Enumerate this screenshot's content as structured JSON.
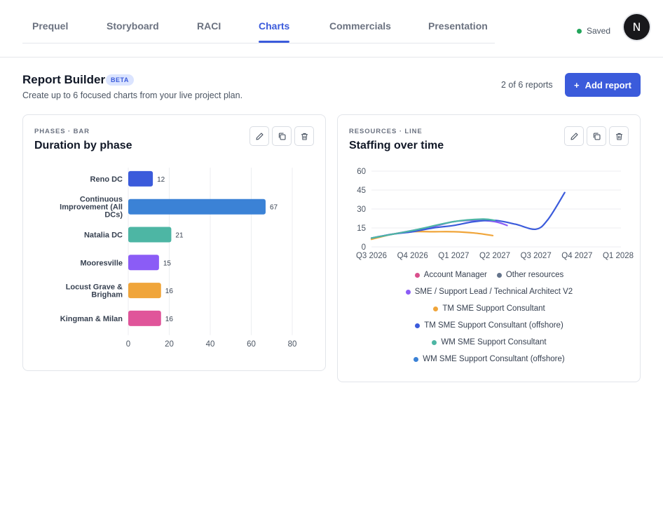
{
  "nav": {
    "tabs": [
      "Prequel",
      "Storyboard",
      "RACI",
      "Charts",
      "Commercials",
      "Presentation"
    ],
    "active_tab": "Charts",
    "status": "Saved",
    "avatar_initial": "N"
  },
  "header": {
    "title": "Report Builder",
    "badge": "BETA",
    "subtitle": "Create up to 6 focused charts from your live project plan.",
    "count": "2 of 6 reports",
    "add_button": "Add report",
    "add_icon": "+"
  },
  "cards": [
    {
      "label": "PHASES · BAR",
      "title": "Duration by phase",
      "actions": [
        "edit-icon",
        "duplicate-icon",
        "delete-icon"
      ]
    },
    {
      "label": "RESOURCES · LINE",
      "title": "Staffing over time",
      "actions": [
        "edit-icon",
        "duplicate-icon",
        "delete-icon"
      ]
    }
  ],
  "colors": {
    "accent": "#3b5bdb",
    "saved": "#22a55b"
  },
  "chart_data": [
    {
      "type": "bar",
      "orientation": "horizontal",
      "categories": [
        [
          "Reno DC"
        ],
        [
          "Continuous",
          "Improvement (All",
          "DCs)"
        ],
        [
          "Natalia DC"
        ],
        [
          "Mooresville"
        ],
        [
          "Locust Grave &",
          "Brigham"
        ],
        [
          "Kingman & Milan"
        ]
      ],
      "values": [
        12,
        67,
        21,
        15,
        16,
        16
      ],
      "value_labels": [
        "12",
        "67",
        "21",
        "15",
        "16",
        "16"
      ],
      "colors": [
        "#3b5bdb",
        "#3b82d6",
        "#4db6a4",
        "#8b5cf6",
        "#f0a53a",
        "#e0559a"
      ],
      "xlim": [
        0,
        80
      ],
      "xticks": [
        "0",
        "20",
        "40",
        "60",
        "80"
      ],
      "grid": true
    },
    {
      "type": "line",
      "x": [
        "Q3 2026",
        "Q4 2026",
        "Q1 2027",
        "Q2 2027",
        "Q3 2027",
        "Q4 2027",
        "Q1 2028"
      ],
      "ylim": [
        0,
        60
      ],
      "yticks": [
        "0",
        "15",
        "30",
        "45",
        "60"
      ],
      "grid": true,
      "legend_position": "bottom",
      "legend": [
        [
          "Account Manager",
          "Other resources"
        ],
        [
          "SME / Support Lead / Technical Architect V2"
        ],
        [
          "TM SME Support Consultant"
        ],
        [
          "TM SME Support Consultant (offshore)"
        ],
        [
          "WM SME Support Consultant"
        ],
        [
          "WM SME Support Consultant (offshore)"
        ]
      ],
      "series": [
        {
          "name": "Account Manager",
          "color": "#d94f8c",
          "points": []
        },
        {
          "name": "Other resources",
          "color": "#64748b",
          "points": []
        },
        {
          "name": "SME / Support Lead / Technical Architect V2",
          "color": "#8b5cf6",
          "points": [
            [
              0,
              7
            ],
            [
              0.5,
              10
            ],
            [
              1,
              13
            ],
            [
              1.5,
              16
            ],
            [
              2,
              20
            ],
            [
              2.5,
              21
            ],
            [
              3,
              20
            ],
            [
              3.3,
              17
            ]
          ]
        },
        {
          "name": "TM SME Support Consultant",
          "color": "#f0a53a",
          "points": [
            [
              0,
              6
            ],
            [
              0.5,
              10
            ],
            [
              1,
              12
            ],
            [
              1.5,
              12
            ],
            [
              2,
              12
            ],
            [
              2.5,
              11
            ],
            [
              2.95,
              9
            ]
          ]
        },
        {
          "name": "TM SME Support Consultant (offshore)",
          "color": "#3b5bdb",
          "points": [
            [
              0,
              7
            ],
            [
              0.5,
              10
            ],
            [
              1,
              12
            ],
            [
              1.5,
              15
            ],
            [
              2,
              17
            ],
            [
              2.5,
              20
            ],
            [
              3,
              21
            ],
            [
              3.5,
              18
            ],
            [
              4,
              14
            ],
            [
              4.3,
              22
            ],
            [
              4.7,
              43
            ]
          ]
        },
        {
          "name": "WM SME Support Consultant",
          "color": "#4db6a4",
          "points": [
            [
              0,
              7
            ],
            [
              1,
              13
            ],
            [
              2,
              20
            ],
            [
              2.7,
              22
            ],
            [
              3,
              21
            ]
          ]
        },
        {
          "name": "WM SME Support Consultant (offshore)",
          "color": "#3b82d6",
          "points": []
        }
      ]
    }
  ]
}
